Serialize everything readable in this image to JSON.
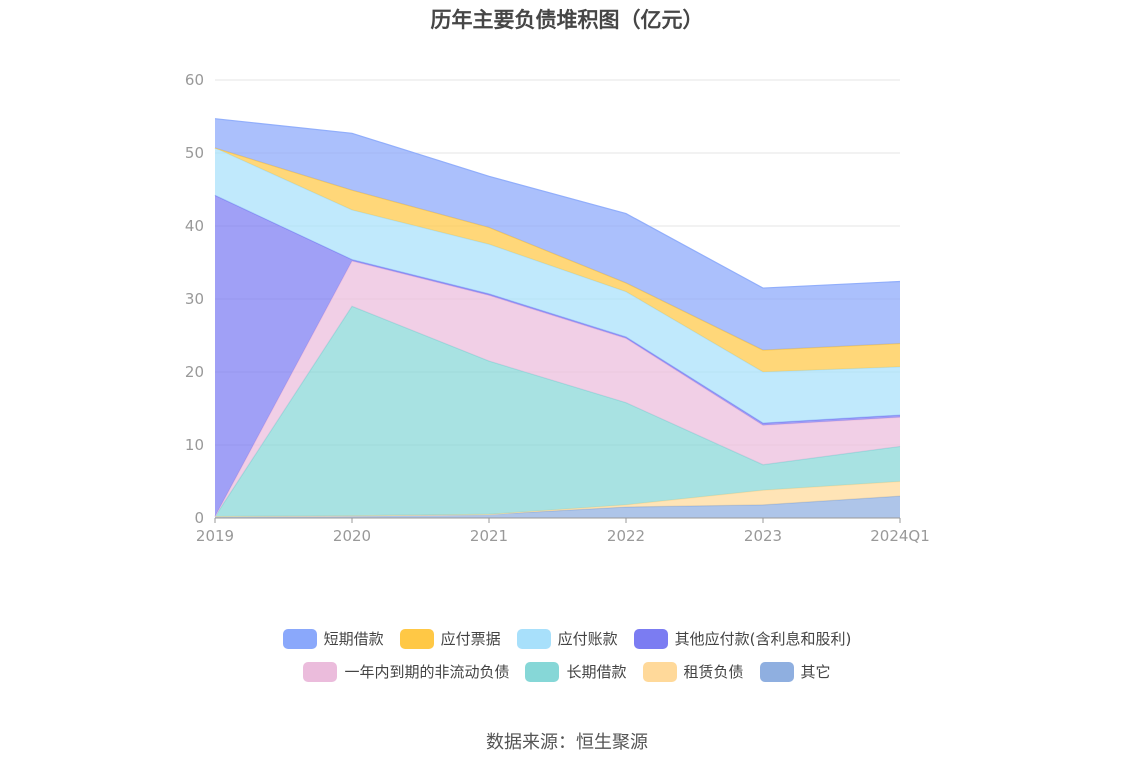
{
  "title": "历年主要负债堆积图（亿元）",
  "source": "数据来源：恒生聚源",
  "chart_data": {
    "type": "area",
    "stacked": true,
    "categories": [
      "2019",
      "2020",
      "2021",
      "2022",
      "2023",
      "2024Q1"
    ],
    "ylim": [
      0,
      60
    ],
    "yticks": [
      0,
      10,
      20,
      30,
      40,
      50,
      60
    ],
    "grid": true,
    "legend_position": "bottom",
    "series": [
      {
        "name": "其它",
        "color": "#8fafe0",
        "values": [
          0.2,
          0.3,
          0.5,
          1.5,
          1.8,
          3.0
        ]
      },
      {
        "name": "租赁负债",
        "color": "#ffd99a",
        "values": [
          0,
          0,
          0,
          0.3,
          2.0,
          2.0
        ]
      },
      {
        "name": "长期借款",
        "color": "#86d7d7",
        "values": [
          0,
          28.7,
          21.0,
          14.0,
          3.5,
          4.8
        ]
      },
      {
        "name": "一年内到期的非流动负债",
        "color": "#ebbcdc",
        "values": [
          0,
          6.2,
          9.0,
          8.8,
          5.4,
          4.0
        ]
      },
      {
        "name": "其他应付款(含利息和股利)",
        "color": "#7b7cf2",
        "values": [
          44.0,
          0.2,
          0.2,
          0.2,
          0.3,
          0.3
        ]
      },
      {
        "name": "应付账款",
        "color": "#a8e0fb",
        "values": [
          6.5,
          6.8,
          6.8,
          6.2,
          7.0,
          6.6
        ]
      },
      {
        "name": "应付票据",
        "color": "#ffc845",
        "values": [
          0,
          2.7,
          2.3,
          1.2,
          3.0,
          3.2
        ]
      },
      {
        "name": "短期借款",
        "color": "#8aa8fb",
        "values": [
          4.0,
          7.8,
          7.0,
          9.5,
          8.5,
          8.5
        ]
      }
    ],
    "legend_rows": [
      [
        "短期借款",
        "应付票据",
        "应付账款",
        "其他应付款(含利息和股利)"
      ],
      [
        "一年内到期的非流动负债",
        "长期借款",
        "租赁负债",
        "其它"
      ]
    ]
  }
}
